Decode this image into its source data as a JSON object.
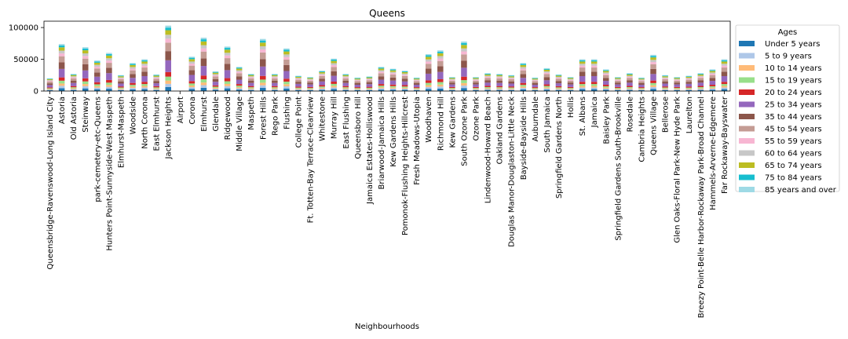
{
  "chart_data": {
    "type": "bar",
    "stacked": true,
    "title": "Queens",
    "xlabel": "Neighbourhoods",
    "ylabel": "",
    "ylim": [
      0,
      110000
    ],
    "yticks": [
      0,
      50000,
      100000
    ],
    "grid": false,
    "legend": {
      "title": "Ages",
      "placement": "outside-right"
    },
    "categories": [
      "Queensbridge-Ravenswood-Long Island City",
      "Astoria",
      "Old Astoria",
      "Steinway",
      "park-cemetery-etc-Queens",
      "Hunters Point-Sunnyside-West Maspeth",
      "Elmhurst-Maspeth",
      "Woodside",
      "North Corona",
      "East Elmhurst",
      "Jackson Heights",
      "Airport",
      "Corona",
      "Elmhurst",
      "Glendale",
      "Ridgewood",
      "Middle Village",
      "Maspeth",
      "Forest Hills",
      "Rego Park",
      "Flushing",
      "College Point",
      "Ft. Totten-Bay Terrace-Clearview",
      "Whitestone",
      "Murray Hill",
      "East Flushing",
      "Queensboro Hill",
      "Jamaica Estates-Holliswood",
      "Briarwood-Jamaica Hills",
      "Kew Gardens Hills",
      "Pomonok-Flushing Heights-Hillcrest",
      "Fresh Meadows-Utopia",
      "Woodhaven",
      "Richmond Hill",
      "Kew Gardens",
      "South Ozone Park",
      "Ozone Park",
      "Lindenwood-Howard Beach",
      "Oakland Gardens",
      "Douglas Manor-Douglaston-Little Neck",
      "Bayside-Bayside Hills",
      "Auburndale",
      "South Jamaica",
      "Springfield Gardens North",
      "Hollis",
      "St. Albans",
      "Jamaica",
      "Baisley Park",
      "Springfield Gardens South-Brookville",
      "Rosedale",
      "Cambria Heights",
      "Queens Village",
      "Bellerose",
      "Glen Oaks-Floral Park-New Hyde Park",
      "Laurelton",
      "Breezy Point-Belle Harbor-Rockaway Park-Broad Channel",
      "Hammels-Arverne-Edgemere",
      "Far Rockaway-Bayswater"
    ],
    "totals": [
      20000,
      74000,
      27000,
      69000,
      48000,
      60000,
      25000,
      44000,
      50000,
      26000,
      103000,
      0,
      54000,
      84000,
      31000,
      70000,
      38000,
      27000,
      82000,
      27000,
      67000,
      24000,
      22000,
      32000,
      51000,
      27000,
      21000,
      23000,
      38000,
      35000,
      32000,
      21000,
      58000,
      64000,
      22000,
      78000,
      22000,
      28000,
      27000,
      25000,
      44000,
      21000,
      36000,
      26000,
      22000,
      50000,
      50000,
      34000,
      22000,
      28000,
      21000,
      57000,
      25000,
      22000,
      24000,
      28000,
      34000,
      50000
    ],
    "series": [
      {
        "name": "Under 5 years",
        "color": "#1f77b4"
      },
      {
        "name": "5 to 9 years",
        "color": "#aec7e8"
      },
      {
        "name": "10 to 14 years",
        "color": "#ffbb78"
      },
      {
        "name": "15 to 19 years",
        "color": "#98df8a"
      },
      {
        "name": "20 to 24 years",
        "color": "#d62728"
      },
      {
        "name": "25 to 34 years",
        "color": "#9467bd"
      },
      {
        "name": "35 to 44 years",
        "color": "#8c564b"
      },
      {
        "name": "45 to 54 years",
        "color": "#c49c94"
      },
      {
        "name": "55 to 59 years",
        "color": "#f7b6d2"
      },
      {
        "name": "60 to 64 years",
        "color": "#c7c7c7"
      },
      {
        "name": "65 to 74 years",
        "color": "#bcbd22"
      },
      {
        "name": "75 to 84 years",
        "color": "#17becf"
      },
      {
        "name": "85 years and over",
        "color": "#9edae5"
      }
    ],
    "series_shares": [
      0.06,
      0.05,
      0.05,
      0.06,
      0.07,
      0.18,
      0.14,
      0.13,
      0.06,
      0.06,
      0.07,
      0.04,
      0.03
    ]
  }
}
